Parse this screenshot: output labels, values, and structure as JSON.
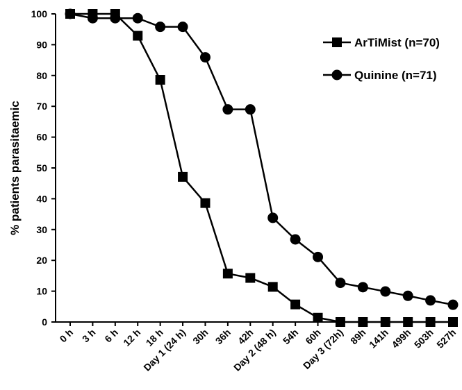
{
  "chart_data": {
    "type": "line",
    "title": "",
    "xlabel": "",
    "ylabel": "% patients parasitaemic",
    "ylim": [
      0,
      100
    ],
    "yticks": [
      0,
      10,
      20,
      30,
      40,
      50,
      60,
      70,
      80,
      90,
      100
    ],
    "grid": false,
    "legend_position": "top-right",
    "categories": [
      "0 h",
      "3 h",
      "6 h",
      "12 h",
      "18 h",
      "Day 1 (24 h)",
      "30h",
      "36h",
      "42h",
      "Day 2 (48 h)",
      "54h",
      "60h",
      "Day 3 (72h)",
      "89h",
      "141h",
      "499h",
      "503h",
      "527h"
    ],
    "series": [
      {
        "name": "ArTiMist (n=70)",
        "marker": "square",
        "color": "#000000",
        "values": [
          100,
          100,
          100,
          92.9,
          78.6,
          47.1,
          38.6,
          15.7,
          14.3,
          11.4,
          5.7,
          1.4,
          0,
          0,
          0,
          0,
          0,
          0
        ]
      },
      {
        "name": "Quinine (n=71)",
        "marker": "circle",
        "color": "#000000",
        "values": [
          100,
          98.6,
          98.6,
          98.6,
          95.8,
          95.8,
          85.9,
          69.0,
          69.0,
          33.8,
          26.8,
          21.1,
          12.7,
          11.3,
          9.9,
          8.5,
          7.0,
          5.6
        ]
      }
    ]
  }
}
